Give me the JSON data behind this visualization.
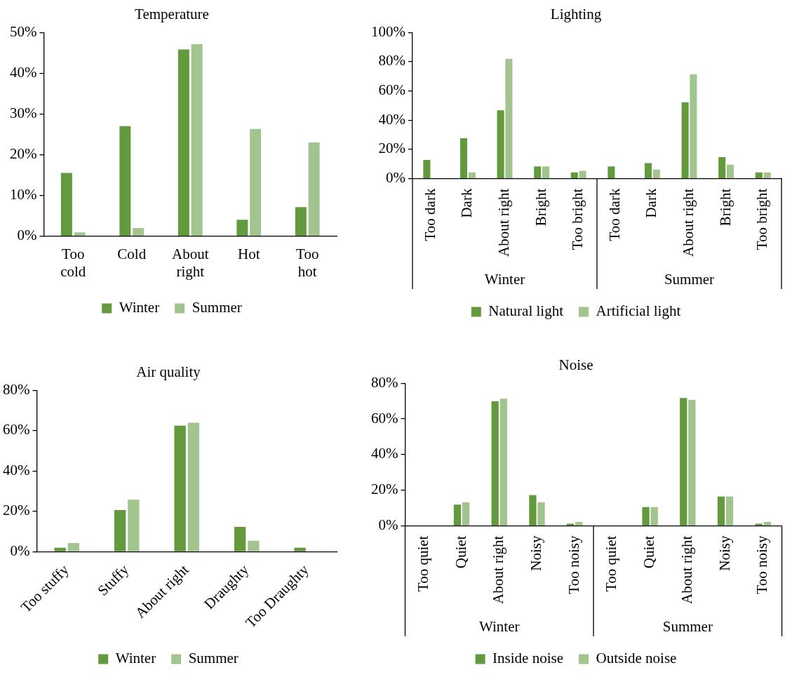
{
  "chart_data": [
    {
      "type": "bar",
      "title": "Temperature",
      "categories": [
        "Too cold",
        "Cold",
        "About right",
        "Hot",
        "Too hot"
      ],
      "series": [
        {
          "name": "Winter",
          "color": "#629a3d",
          "values": [
            15.5,
            27.0,
            45.8,
            4.0,
            7.1
          ]
        },
        {
          "name": "Summer",
          "color": "#a2c48e",
          "values": [
            0.9,
            2.0,
            47.1,
            26.3,
            23.0
          ]
        }
      ],
      "ylim": [
        0,
        50
      ],
      "yticks": [
        {
          "value": 0,
          "label": "0%"
        },
        {
          "value": 10,
          "label": "10%"
        },
        {
          "value": 20,
          "label": "20%"
        },
        {
          "value": 30,
          "label": "30%"
        },
        {
          "value": 40,
          "label": "40%"
        },
        {
          "value": 50,
          "label": "50%"
        }
      ],
      "legend": "bottom"
    },
    {
      "type": "bar",
      "title": "Lighting",
      "categories": [
        "Too dark",
        "Dark",
        "About right",
        "Bright",
        "Too bright",
        "Too dark",
        "Dark",
        "About right",
        "Bright",
        "Too bright"
      ],
      "series": [
        {
          "name": "Natural light",
          "color": "#629a3d",
          "values": [
            12.7,
            27.6,
            46.7,
            8.3,
            4.2,
            8.3,
            10.6,
            52.2,
            14.7,
            4.2
          ]
        },
        {
          "name": "Artificial light",
          "color": "#a2c48e",
          "values": [
            0,
            4.2,
            82.0,
            8.3,
            5.3,
            0,
            6.2,
            71.3,
            9.5,
            4.2
          ]
        }
      ],
      "ylim": [
        0,
        100
      ],
      "yticks": [
        {
          "value": 0,
          "label": "0%"
        },
        {
          "value": 20,
          "label": "20%"
        },
        {
          "value": 40,
          "label": "40%"
        },
        {
          "value": 60,
          "label": "60%"
        },
        {
          "value": 80,
          "label": "80%"
        },
        {
          "value": 100,
          "label": "100%"
        }
      ],
      "annotations": [
        "Winter",
        "Summer"
      ],
      "legend": "bottom"
    },
    {
      "type": "bar",
      "title": "Air quality",
      "categories": [
        "Too stuffy",
        "Stuffy",
        "About right",
        "Draughty",
        "Too Draughty"
      ],
      "series": [
        {
          "name": "Winter",
          "color": "#629a3d",
          "values": [
            2.0,
            20.7,
            62.4,
            12.3,
            2.0
          ]
        },
        {
          "name": "Summer",
          "color": "#a2c48e",
          "values": [
            4.3,
            25.8,
            63.9,
            5.5,
            0
          ]
        }
      ],
      "ylim": [
        0,
        80
      ],
      "yticks": [
        {
          "value": 0,
          "label": "0%"
        },
        {
          "value": 20,
          "label": "20%"
        },
        {
          "value": 40,
          "label": "40%"
        },
        {
          "value": 60,
          "label": "60%"
        },
        {
          "value": 80,
          "label": "80%"
        }
      ],
      "legend": "bottom"
    },
    {
      "type": "bar",
      "title": "Noise",
      "categories": [
        "Too quiet",
        "Quiet",
        "About right",
        "Noisy",
        "Too noisy",
        "Too quiet",
        "Quiet",
        "About right",
        "Noisy",
        "Too noisy"
      ],
      "series": [
        {
          "name": "Inside noise",
          "color": "#629a3d",
          "values": [
            0,
            11.9,
            69.9,
            17.2,
            1.2,
            0,
            10.6,
            71.7,
            16.5,
            1.2
          ]
        },
        {
          "name": "Outside noise",
          "color": "#a2c48e",
          "values": [
            0,
            13.2,
            71.3,
            13.2,
            2.2,
            0,
            10.6,
            70.6,
            16.5,
            2.2
          ]
        }
      ],
      "ylim": [
        0,
        80
      ],
      "yticks": [
        {
          "value": 0,
          "label": "0%"
        },
        {
          "value": 20,
          "label": "20%"
        },
        {
          "value": 40,
          "label": "40%"
        },
        {
          "value": 60,
          "label": "60%"
        },
        {
          "value": 80,
          "label": "80%"
        }
      ],
      "annotations": [
        "Winter",
        "Summer"
      ],
      "legend": "bottom"
    }
  ]
}
